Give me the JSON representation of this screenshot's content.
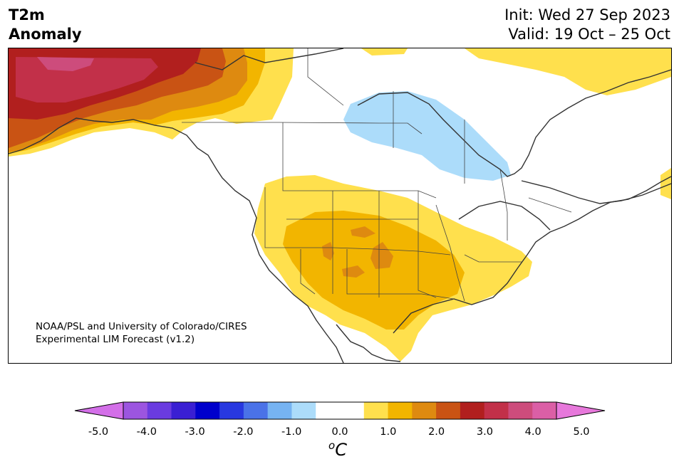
{
  "title": {
    "variable": "T2m",
    "subtitle": "Anomaly",
    "init": "Init: Wed 27 Sep 2023",
    "valid": "Valid: 19 Oct – 25 Oct"
  },
  "credit": {
    "line1": "NOAA/PSL and University of Colorado/CIRES",
    "line2": "Experimental LIM Forecast (v1.2)"
  },
  "colorbar": {
    "unit_superscript": "o",
    "unit_letter": "C",
    "tick_labels": [
      "-5.0",
      "-4.0",
      "-3.0",
      "-2.0",
      "-1.0",
      "0.0",
      "1.0",
      "2.0",
      "3.0",
      "4.0",
      "5.0"
    ],
    "levels": [
      -5.0,
      -4.5,
      -4.0,
      -3.5,
      -3.0,
      -2.5,
      -2.0,
      -1.5,
      -1.0,
      -0.5,
      0.5,
      1.0,
      1.5,
      2.0,
      2.5,
      3.0,
      3.5,
      4.0,
      4.5,
      5.0
    ],
    "colors": [
      "#d36fe8",
      "#9c55e0",
      "#6a3be0",
      "#3a1fd3",
      "#0000cc",
      "#2838e0",
      "#4a72e8",
      "#76b3f2",
      "#acdcfa",
      "#ffffff",
      "#ffffff",
      "#ffe04d",
      "#f2b500",
      "#de8a10",
      "#c95314",
      "#b11f1e",
      "#c23049",
      "#cd4c7c",
      "#db5fa6",
      "#e778db"
    ],
    "under_color": "#d36fe8",
    "over_color": "#e778db"
  },
  "anomaly_regions": [
    {
      "name": "alaska",
      "levels": [
        "1.0",
        "1.5",
        "2.0",
        "2.5",
        "3.0",
        "4.0"
      ]
    },
    {
      "name": "western-canada",
      "levels": [
        "1.0",
        "1.5",
        "2.0"
      ]
    },
    {
      "name": "northern-plains-great-lakes",
      "levels": [
        "-1.0"
      ]
    },
    {
      "name": "southwest-southern-plains",
      "levels": [
        "1.0",
        "1.5",
        "2.0"
      ]
    },
    {
      "name": "arctic-islands-labrador",
      "levels": [
        "1.0"
      ]
    }
  ]
}
